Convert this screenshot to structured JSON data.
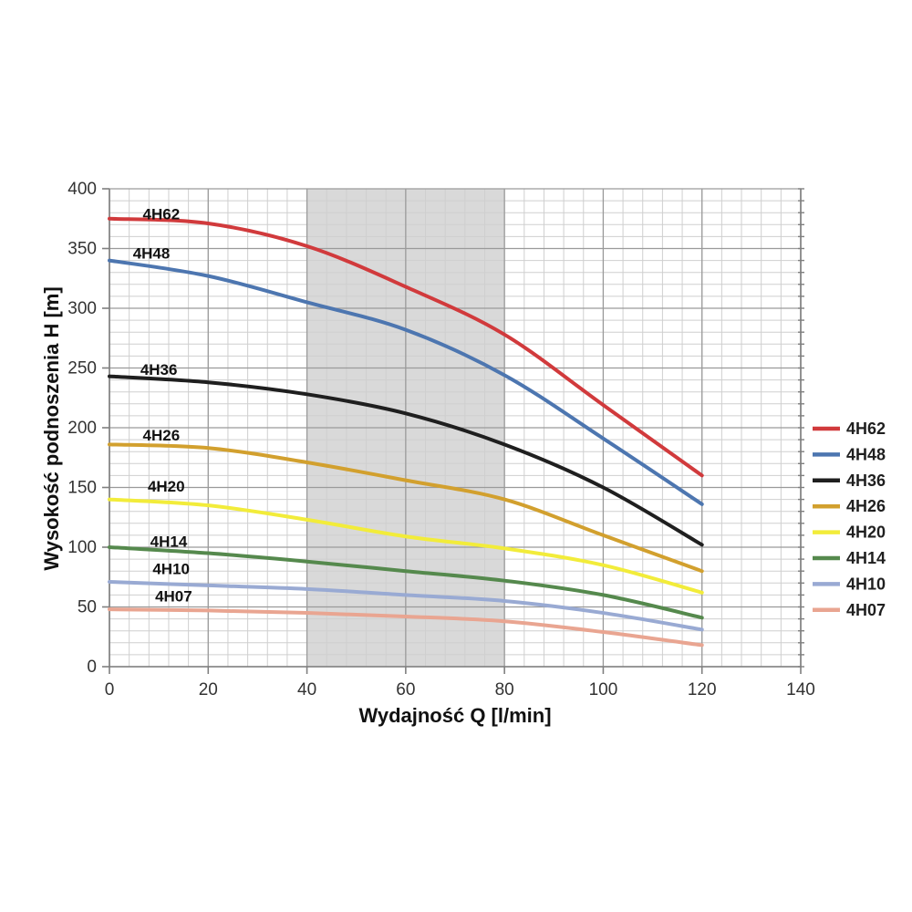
{
  "chart_data": {
    "type": "line",
    "title": "",
    "xlabel": "Wydajność Q [l/min]",
    "ylabel": "Wysokość podnoszenia H [m]",
    "xlim": [
      0,
      140
    ],
    "ylim": [
      0,
      400
    ],
    "x_major": 20,
    "x_minor": 4,
    "y_major": 50,
    "y_minor": 10,
    "x_tick_labels": [
      "0",
      "20",
      "40",
      "60",
      "80",
      "100",
      "120",
      "140"
    ],
    "y_tick_labels": [
      "0",
      "50",
      "100",
      "150",
      "200",
      "250",
      "300",
      "350",
      "400"
    ],
    "x": [
      0,
      20,
      40,
      60,
      80,
      100,
      120
    ],
    "series": [
      {
        "name": "4H62",
        "color": "#d13a3c",
        "values": [
          375,
          371,
          352,
          318,
          278,
          219,
          160
        ],
        "label_at": [
          10.5,
          379
        ]
      },
      {
        "name": "4H48",
        "color": "#4d76b0",
        "values": [
          340,
          327,
          305,
          282,
          244,
          191,
          136
        ],
        "label_at": [
          8.5,
          346
        ]
      },
      {
        "name": "4H36",
        "color": "#1f1f1f",
        "values": [
          243,
          238,
          228,
          212,
          186,
          150,
          102
        ],
        "label_at": [
          10,
          249
        ]
      },
      {
        "name": "4H26",
        "color": "#d2a02e",
        "values": [
          186,
          183,
          171,
          156,
          140,
          110,
          80
        ],
        "label_at": [
          10.5,
          194
        ]
      },
      {
        "name": "4H20",
        "color": "#f2ec3a",
        "values": [
          140,
          135,
          123,
          109,
          99,
          85,
          62
        ],
        "label_at": [
          11.5,
          151
        ]
      },
      {
        "name": "4H14",
        "color": "#55894d",
        "values": [
          100,
          95,
          88,
          80,
          72,
          60,
          41
        ],
        "label_at": [
          12,
          105
        ]
      },
      {
        "name": "4H10",
        "color": "#99aad3",
        "values": [
          71,
          68,
          65,
          60,
          55,
          45,
          31
        ],
        "label_at": [
          12.5,
          82
        ]
      },
      {
        "name": "4H07",
        "color": "#e9a591",
        "values": [
          48,
          47,
          45,
          42,
          38,
          29,
          18
        ],
        "label_at": [
          13,
          59
        ]
      }
    ],
    "shaded_band": {
      "from": 40,
      "to": 80,
      "color": "#d9d9d9"
    },
    "grid": {
      "minor_color": "#cfcfcf",
      "major_color": "#9a9a9a",
      "axis_color": "#7f7f7f"
    },
    "legend": {
      "position": "right"
    }
  }
}
